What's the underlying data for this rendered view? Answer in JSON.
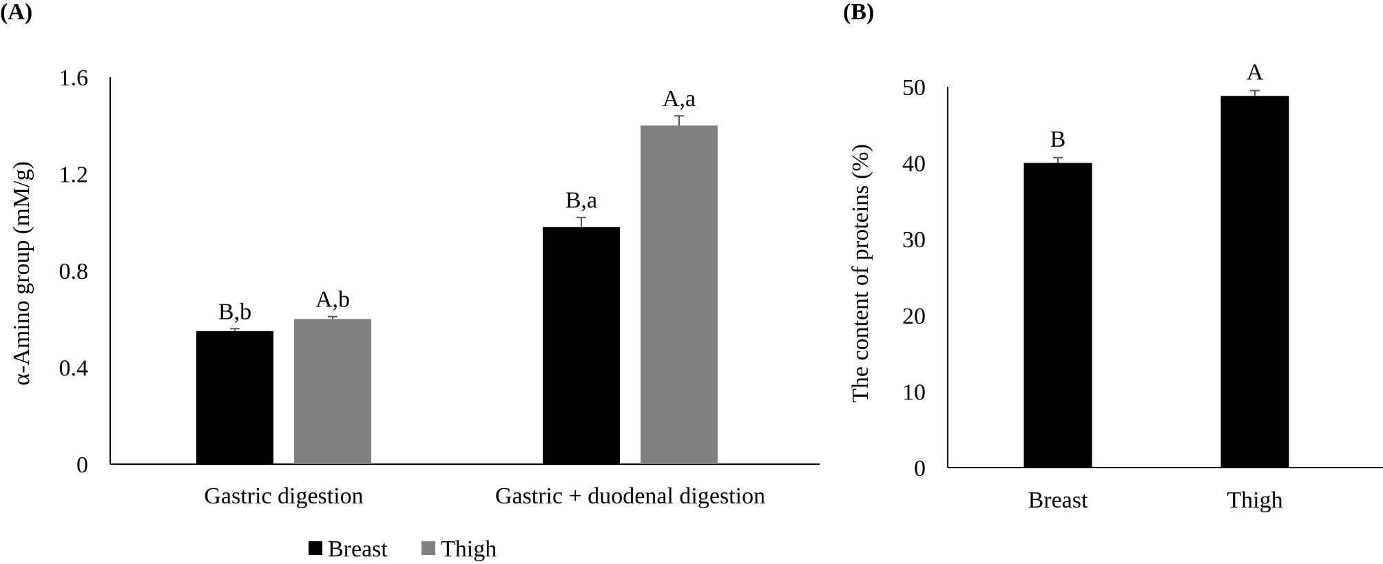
{
  "panels": {
    "a_label": "(A)",
    "b_label": "(B)"
  },
  "chart_data": [
    {
      "type": "bar",
      "panel": "(A)",
      "title": "",
      "xlabel": "",
      "ylabel": "α-Amino group (mM/g)",
      "ylim": [
        0,
        1.6
      ],
      "yticks": [
        "0",
        "0.4",
        "0.8",
        "1.2",
        "1.6"
      ],
      "ytick_values": [
        0,
        0.4,
        0.8,
        1.2,
        1.6
      ],
      "categories": [
        "Gastric digestion",
        "Gastric + duodenal digestion"
      ],
      "series": [
        {
          "name": "Breast",
          "color": "#000000",
          "values": [
            0.55,
            0.98
          ],
          "errors": [
            0.01,
            0.04
          ],
          "labels": [
            "B,b",
            "B,a"
          ]
        },
        {
          "name": "Thigh",
          "color": "#808080",
          "values": [
            0.6,
            1.4
          ],
          "errors": [
            0.01,
            0.04
          ],
          "labels": [
            "A,b",
            "A,a"
          ]
        }
      ],
      "legend": {
        "position": "bottom",
        "entries": [
          "Breast",
          "Thigh"
        ]
      },
      "grid": false
    },
    {
      "type": "bar",
      "panel": "(B)",
      "title": "",
      "xlabel": "",
      "ylabel": "The content of proteins (%)",
      "ylim": [
        0,
        50
      ],
      "yticks": [
        "0",
        "10",
        "20",
        "30",
        "40",
        "50"
      ],
      "ytick_values": [
        0,
        10,
        20,
        30,
        40,
        50
      ],
      "categories": [
        "Breast",
        "Thigh"
      ],
      "series": [
        {
          "color": "#000000",
          "values": [
            40.0,
            48.8
          ],
          "errors": [
            0.7,
            0.7
          ],
          "labels": [
            "B",
            "A"
          ]
        }
      ],
      "grid": false
    }
  ]
}
